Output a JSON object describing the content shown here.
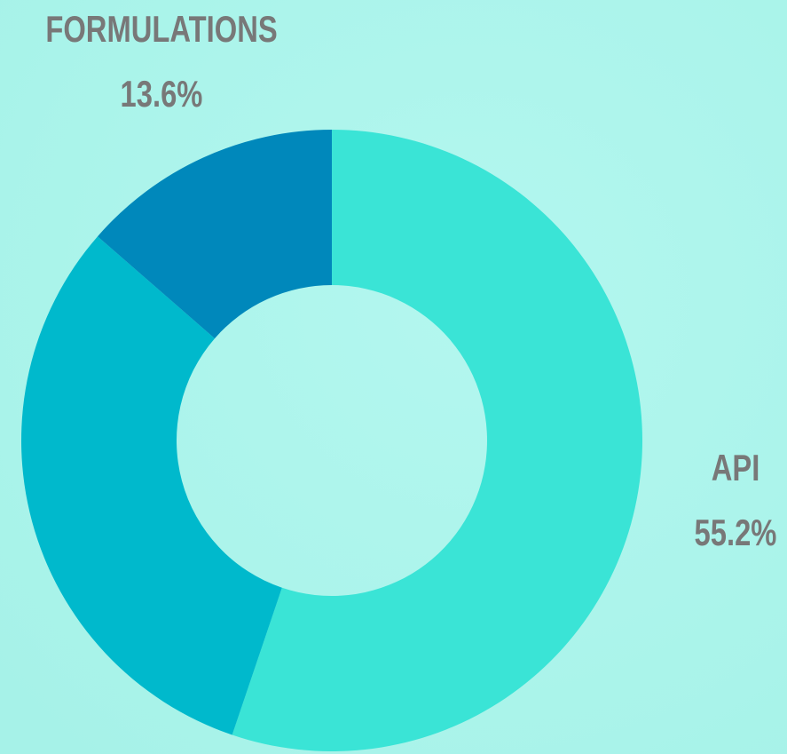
{
  "chart_data": {
    "type": "pie",
    "categories": [
      "API",
      null,
      "FORMULATIONS"
    ],
    "values": [
      55.2,
      31.2,
      13.6
    ],
    "value_labels": [
      "55.2%",
      null,
      "13.6%"
    ],
    "colors": [
      "#3ae4d6",
      "#00b9cc",
      "#0088bb"
    ],
    "donut": true
  }
}
